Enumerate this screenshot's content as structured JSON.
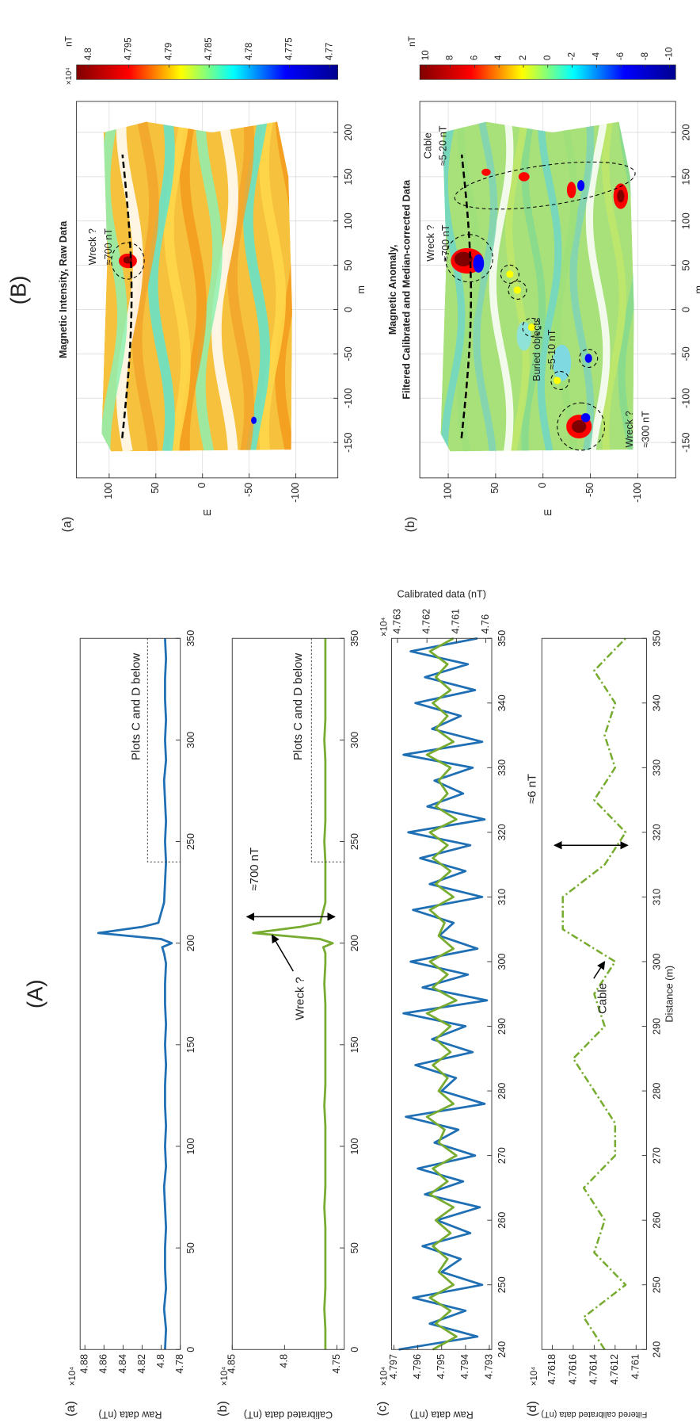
{
  "header": {
    "title_a": "(A)",
    "title_b": "(B)"
  },
  "chart_data": [
    {
      "type": "line",
      "panel_label": "(a)",
      "y_label": "Raw data (nT)",
      "y_exponent": "×10⁴",
      "xlim": [
        0,
        350
      ],
      "xticks": [
        0,
        50,
        100,
        150,
        200,
        250,
        300,
        350
      ],
      "ylim": [
        4.78,
        4.885
      ],
      "yticks": [
        4.78,
        4.8,
        4.82,
        4.84,
        4.86,
        4.88
      ],
      "x": [
        0,
        10,
        20,
        30,
        40,
        50,
        60,
        70,
        80,
        90,
        100,
        110,
        120,
        130,
        140,
        150,
        160,
        170,
        180,
        190,
        195,
        198,
        200,
        202,
        205,
        208,
        210,
        220,
        230,
        240,
        250,
        260,
        270,
        280,
        290,
        300,
        310,
        320,
        330,
        340,
        350
      ],
      "series": [
        {
          "color": "#1f6fb4",
          "values": [
            4.796,
            4.795,
            4.797,
            4.795,
            4.796,
            4.796,
            4.795,
            4.796,
            4.797,
            4.795,
            4.796,
            4.795,
            4.796,
            4.796,
            4.795,
            4.796,
            4.795,
            4.796,
            4.796,
            4.795,
            4.797,
            4.799,
            4.789,
            4.8,
            4.866,
            4.82,
            4.803,
            4.797,
            4.796,
            4.795,
            4.796,
            4.795,
            4.796,
            4.797,
            4.795,
            4.796,
            4.795,
            4.796,
            4.796,
            4.795,
            4.796
          ]
        }
      ],
      "annotations": [
        "Plots C and D below"
      ]
    },
    {
      "type": "line",
      "panel_label": "(b)",
      "y_label": "Calibrated data (nT)",
      "y_exponent": "×10⁴",
      "xlim": [
        0,
        350
      ],
      "xticks": [
        0,
        50,
        100,
        150,
        200,
        250,
        300,
        350
      ],
      "ylim": [
        4.743,
        4.85
      ],
      "yticks": [
        4.75,
        4.8,
        4.85
      ],
      "x": [
        0,
        10,
        20,
        30,
        40,
        50,
        60,
        70,
        80,
        90,
        100,
        110,
        120,
        130,
        140,
        150,
        160,
        170,
        180,
        190,
        195,
        198,
        200,
        202,
        205,
        208,
        210,
        220,
        230,
        240,
        250,
        260,
        270,
        280,
        290,
        300,
        310,
        320,
        330,
        340,
        350
      ],
      "series": [
        {
          "color": "#77ac30",
          "values": [
            4.761,
            4.761,
            4.762,
            4.761,
            4.761,
            4.761,
            4.761,
            4.762,
            4.761,
            4.761,
            4.761,
            4.761,
            4.762,
            4.761,
            4.761,
            4.761,
            4.761,
            4.761,
            4.762,
            4.761,
            4.761,
            4.763,
            4.754,
            4.766,
            4.83,
            4.785,
            4.766,
            4.761,
            4.761,
            4.761,
            4.762,
            4.761,
            4.761,
            4.761,
            4.761,
            4.762,
            4.761,
            4.761,
            4.761,
            4.761,
            4.761
          ]
        }
      ],
      "annotations": [
        "Wreck ?",
        "≈700 nT",
        "Plots C and D below"
      ]
    },
    {
      "type": "line",
      "panel_label": "(c)",
      "y_label": "Raw data (nT)",
      "y_exponent": "×10⁴",
      "y2_label": "Calibrated data (nT)",
      "y2_exponent": "×10⁴",
      "xlim": [
        240,
        350
      ],
      "xticks": [
        240,
        250,
        260,
        270,
        280,
        290,
        300,
        310,
        320,
        330,
        340,
        350
      ],
      "ylim": [
        4.7929,
        4.7971
      ],
      "yticks": [
        4.793,
        4.794,
        4.795,
        4.796,
        4.797
      ],
      "y2lim": [
        4.7598,
        4.7632
      ],
      "y2ticks": [
        4.76,
        4.761,
        4.762,
        4.763
      ],
      "x": [
        240,
        242,
        244,
        246,
        248,
        250,
        252,
        254,
        256,
        258,
        260,
        262,
        264,
        266,
        268,
        270,
        272,
        274,
        276,
        278,
        280,
        282,
        284,
        286,
        288,
        290,
        292,
        294,
        296,
        298,
        300,
        302,
        304,
        306,
        308,
        310,
        312,
        314,
        316,
        318,
        320,
        322,
        324,
        326,
        328,
        330,
        332,
        334,
        336,
        338,
        340,
        342,
        344,
        346,
        348,
        350
      ],
      "series": [
        {
          "color": "#1f6fb4",
          "values": [
            4.7968,
            4.7935,
            4.7955,
            4.794,
            4.7962,
            4.7933,
            4.795,
            4.7942,
            4.7958,
            4.7938,
            4.7952,
            4.7934,
            4.7957,
            4.7941,
            4.796,
            4.7936,
            4.7953,
            4.7943,
            4.7965,
            4.7932,
            4.795,
            4.7944,
            4.7961,
            4.7937,
            4.7954,
            4.794,
            4.7966,
            4.7931,
            4.7958,
            4.7939,
            4.7963,
            4.7935,
            4.7951,
            4.7945,
            4.7962,
            4.7933,
            4.7955,
            4.794,
            4.7959,
            4.7938,
            4.7964,
            4.7932,
            4.7956,
            4.7941,
            4.7953,
            4.7937,
            4.7966,
            4.7933,
            4.7954,
            4.7942,
            4.7961,
            4.7936,
            4.7957,
            4.7939,
            4.7963,
            4.7935
          ]
        },
        {
          "color": "#77ac30",
          "axis": "y2",
          "values": [
            4.7618,
            4.761,
            4.7617,
            4.7612,
            4.7619,
            4.7611,
            4.7616,
            4.7613,
            4.7618,
            4.7612,
            4.7617,
            4.7611,
            4.7619,
            4.7613,
            4.7618,
            4.761,
            4.7616,
            4.7614,
            4.762,
            4.7611,
            4.7616,
            4.7613,
            4.7618,
            4.7612,
            4.7617,
            4.7612,
            4.762,
            4.761,
            4.7618,
            4.7613,
            4.7619,
            4.7611,
            4.7616,
            4.7614,
            4.7619,
            4.7611,
            4.7617,
            4.7612,
            4.7618,
            4.7613,
            4.7619,
            4.761,
            4.7617,
            4.7613,
            4.7616,
            4.7612,
            4.762,
            4.7611,
            4.7617,
            4.7613,
            4.7618,
            4.7612,
            4.7617,
            4.7613,
            4.7619,
            4.7611
          ]
        }
      ],
      "annotations": []
    },
    {
      "type": "line",
      "panel_label": "(d)",
      "y_label": "Filtered calibrated data (nT)",
      "y_exponent": "×10⁴",
      "x_label": "Distance (m)",
      "xlim": [
        240,
        350
      ],
      "xticks": [
        240,
        250,
        260,
        270,
        280,
        290,
        300,
        310,
        320,
        330,
        340,
        350
      ],
      "ylim": [
        4.7609,
        4.7619
      ],
      "yticks": [
        4.761,
        4.7612,
        4.7614,
        4.7616,
        4.7618
      ],
      "x": [
        240,
        245,
        250,
        255,
        260,
        265,
        270,
        275,
        280,
        285,
        290,
        295,
        300,
        305,
        310,
        315,
        320,
        325,
        330,
        335,
        340,
        345,
        350
      ],
      "series": [
        {
          "color": "#77ac30",
          "line_style": "dash-dot",
          "values": [
            4.7613,
            4.7615,
            4.7611,
            4.7614,
            4.7613,
            4.7615,
            4.7612,
            4.7612,
            4.7614,
            4.7616,
            4.7613,
            4.7614,
            4.7612,
            4.7617,
            4.7617,
            4.7613,
            4.7611,
            4.7614,
            4.7612,
            4.7613,
            4.7612,
            4.7614,
            4.7611
          ]
        }
      ],
      "annotations": [
        "Cable",
        "≈6 nT"
      ]
    },
    {
      "type": "heatmap",
      "panel_label": "(a)",
      "title": [
        "Magnetic Intensity, Raw Data"
      ],
      "x_label": "m",
      "y_label": "m",
      "grid": true,
      "xlim": [
        -190,
        235
      ],
      "xticks": [
        -150,
        -100,
        -50,
        0,
        50,
        100,
        150,
        200
      ],
      "ylim": [
        -145,
        135
      ],
      "yticks": [
        -100,
        -50,
        0,
        50,
        100
      ],
      "colorbar": {
        "clim": [
          4.769,
          4.8015
        ],
        "ticks": [
          4.77,
          4.775,
          4.78,
          4.785,
          4.79,
          4.795,
          4.8
        ],
        "unit": "nT",
        "exponent": "×10⁴",
        "colors": [
          "#00008f",
          "#0000ff",
          "#00ffff",
          "#ffff00",
          "#ff0000",
          "#800000"
        ]
      },
      "annotations": [
        "Wreck ?",
        "≈700 nT"
      ]
    },
    {
      "type": "heatmap",
      "panel_label": "(b)",
      "title": [
        "Magnetic Anomaly,",
        "Filtered Calibrated and Median-corrected Data"
      ],
      "x_label": "m",
      "y_label": "m",
      "grid": true,
      "xlim": [
        -190,
        235
      ],
      "xticks": [
        -150,
        -100,
        -50,
        0,
        50,
        100,
        150,
        200
      ],
      "ylim": [
        -140,
        130
      ],
      "yticks": [
        -100,
        -50,
        0,
        50,
        100
      ],
      "colorbar": {
        "clim": [
          -10.5,
          10.5
        ],
        "ticks": [
          -10,
          -8,
          -6,
          -4,
          -2,
          0,
          2,
          4,
          6,
          8,
          10
        ],
        "unit": "nT",
        "colors": [
          "#00008f",
          "#0000ff",
          "#00ffff",
          "#ffff00",
          "#ff0000",
          "#800000"
        ]
      },
      "annotations": [
        "Wreck ?",
        "≈700 nT",
        "Cable",
        "≈5-20 nT",
        "Buried objects",
        "≈5-10 nT",
        "Wreck ?",
        "≈300 nT"
      ]
    }
  ]
}
